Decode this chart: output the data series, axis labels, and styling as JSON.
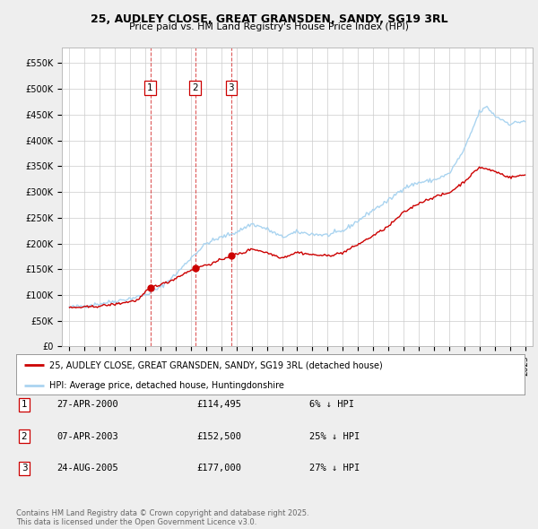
{
  "title": "25, AUDLEY CLOSE, GREAT GRANSDEN, SANDY, SG19 3RL",
  "subtitle": "Price paid vs. HM Land Registry's House Price Index (HPI)",
  "ylabel_ticks": [
    "£0",
    "£50K",
    "£100K",
    "£150K",
    "£200K",
    "£250K",
    "£300K",
    "£350K",
    "£400K",
    "£450K",
    "£500K",
    "£550K"
  ],
  "ytick_values": [
    0,
    50000,
    100000,
    150000,
    200000,
    250000,
    300000,
    350000,
    400000,
    450000,
    500000,
    550000
  ],
  "ylim": [
    0,
    580000
  ],
  "xlim_start": 1994.5,
  "xlim_end": 2025.5,
  "hpi_color": "#aad4f0",
  "price_color": "#cc0000",
  "legend_label_red": "25, AUDLEY CLOSE, GREAT GRANSDEN, SANDY, SG19 3RL (detached house)",
  "legend_label_blue": "HPI: Average price, detached house, Huntingdonshire",
  "transactions": [
    {
      "id": 1,
      "date": "27-APR-2000",
      "price": 114495,
      "pct": "6%",
      "year": 2000.32
    },
    {
      "id": 2,
      "date": "07-APR-2003",
      "price": 152500,
      "pct": "25%",
      "year": 2003.27
    },
    {
      "id": 3,
      "date": "24-AUG-2005",
      "price": 177000,
      "pct": "27%",
      "year": 2005.65
    }
  ],
  "footer": "Contains HM Land Registry data © Crown copyright and database right 2025.\nThis data is licensed under the Open Government Licence v3.0.",
  "background_color": "#eeeeee",
  "plot_background_color": "#ffffff",
  "grid_color": "#cccccc",
  "hpi_anchors": [
    [
      1995.0,
      76000
    ],
    [
      1996.0,
      79000
    ],
    [
      1997.0,
      83000
    ],
    [
      1998.0,
      88000
    ],
    [
      1999.0,
      93000
    ],
    [
      2000.0,
      100000
    ],
    [
      2001.0,
      115000
    ],
    [
      2002.0,
      140000
    ],
    [
      2003.0,
      172000
    ],
    [
      2004.0,
      200000
    ],
    [
      2005.0,
      212000
    ],
    [
      2006.0,
      222000
    ],
    [
      2007.0,
      238000
    ],
    [
      2008.0,
      228000
    ],
    [
      2009.0,
      212000
    ],
    [
      2010.0,
      222000
    ],
    [
      2011.0,
      218000
    ],
    [
      2012.0,
      216000
    ],
    [
      2013.0,
      224000
    ],
    [
      2014.0,
      244000
    ],
    [
      2015.0,
      265000
    ],
    [
      2016.0,
      283000
    ],
    [
      2017.0,
      308000
    ],
    [
      2018.0,
      318000
    ],
    [
      2019.0,
      323000
    ],
    [
      2020.0,
      335000
    ],
    [
      2021.0,
      382000
    ],
    [
      2022.0,
      455000
    ],
    [
      2022.5,
      465000
    ],
    [
      2023.0,
      448000
    ],
    [
      2024.0,
      432000
    ],
    [
      2025.0,
      438000
    ]
  ],
  "price_anchors": [
    [
      1995.0,
      75000
    ],
    [
      1996.5,
      77000
    ],
    [
      1998.0,
      82000
    ],
    [
      1999.5,
      90000
    ],
    [
      2000.32,
      114495
    ],
    [
      2001.5,
      125000
    ],
    [
      2003.27,
      152500
    ],
    [
      2004.5,
      162000
    ],
    [
      2005.65,
      177000
    ],
    [
      2006.5,
      182000
    ],
    [
      2007.0,
      190000
    ],
    [
      2008.0,
      182000
    ],
    [
      2009.0,
      172000
    ],
    [
      2010.0,
      183000
    ],
    [
      2011.0,
      178000
    ],
    [
      2012.0,
      176000
    ],
    [
      2013.0,
      182000
    ],
    [
      2014.0,
      198000
    ],
    [
      2015.0,
      215000
    ],
    [
      2016.0,
      233000
    ],
    [
      2017.0,
      260000
    ],
    [
      2018.0,
      278000
    ],
    [
      2019.0,
      290000
    ],
    [
      2020.0,
      298000
    ],
    [
      2021.0,
      320000
    ],
    [
      2022.0,
      348000
    ],
    [
      2023.0,
      340000
    ],
    [
      2024.0,
      328000
    ],
    [
      2025.0,
      333000
    ]
  ]
}
